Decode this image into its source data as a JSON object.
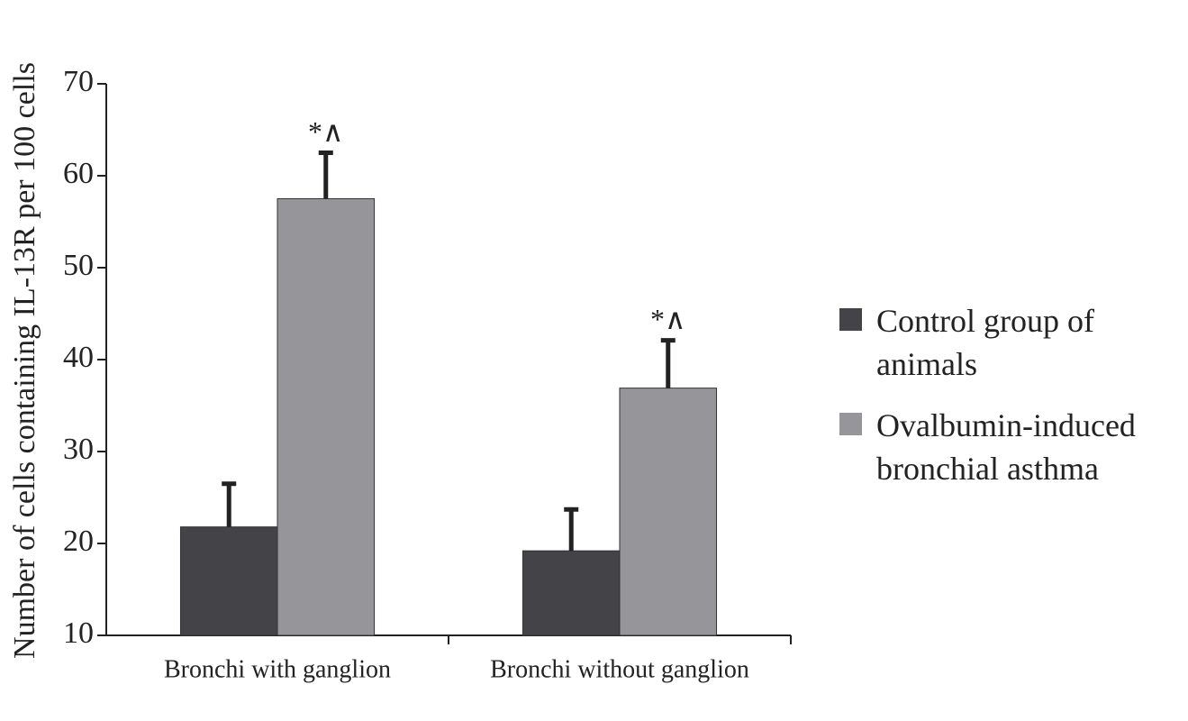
{
  "chart_data": {
    "type": "bar",
    "ylabel": "Number of cells containing IL-13R per 100 cells",
    "categories": [
      "Bronchi with ganglion",
      "Bronchi without ganglion"
    ],
    "series": [
      {
        "name": "Control group of animals",
        "color": "#444448",
        "values": [
          21.8,
          19.2
        ],
        "errors": [
          4.7,
          4.5
        ]
      },
      {
        "name": "Ovalbumin-induced bronchial asthma",
        "color": "#96969a",
        "values": [
          57.5,
          36.9
        ],
        "errors": [
          5.0,
          5.2
        ],
        "annotations": [
          "*∧",
          "*∧"
        ]
      }
    ],
    "ylim": [
      10,
      70
    ],
    "yticks": [
      10,
      20,
      30,
      40,
      50,
      60,
      70
    ],
    "legend": "right"
  }
}
